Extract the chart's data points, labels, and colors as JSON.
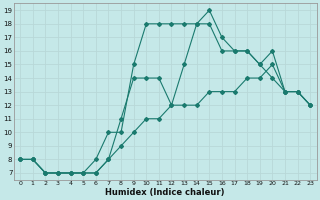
{
  "xlabel": "Humidex (Indice chaleur)",
  "bg_color": "#c5e8e8",
  "line_color": "#1a7a6e",
  "grid_color": "#b8d8d8",
  "xlim": [
    -0.5,
    23.5
  ],
  "ylim": [
    6.5,
    19.5
  ],
  "xticks": [
    0,
    1,
    2,
    3,
    4,
    5,
    6,
    7,
    8,
    9,
    10,
    11,
    12,
    13,
    14,
    15,
    16,
    17,
    18,
    19,
    20,
    21,
    22,
    23
  ],
  "yticks": [
    7,
    8,
    9,
    10,
    11,
    12,
    13,
    14,
    15,
    16,
    17,
    18,
    19
  ],
  "line1_x": [
    0,
    1,
    2,
    3,
    4,
    5,
    6,
    7,
    8,
    9,
    10,
    11,
    12,
    13,
    14,
    15,
    16,
    17,
    18,
    19,
    20,
    21,
    22,
    23
  ],
  "line1_y": [
    8,
    8,
    7,
    7,
    7,
    7,
    7,
    8,
    9,
    10,
    11,
    11,
    12,
    12,
    12,
    13,
    13,
    13,
    14,
    14,
    15,
    13,
    13,
    12
  ],
  "line2_x": [
    0,
    1,
    2,
    3,
    4,
    5,
    6,
    7,
    8,
    9,
    10,
    11,
    12,
    13,
    14,
    15,
    16,
    17,
    18,
    19,
    20,
    21,
    22,
    23
  ],
  "line2_y": [
    8,
    8,
    7,
    7,
    7,
    7,
    8,
    10,
    10,
    15,
    18,
    18,
    18,
    18,
    18,
    18,
    16,
    16,
    16,
    15,
    14,
    13,
    13,
    12
  ],
  "line3_x": [
    0,
    1,
    2,
    3,
    4,
    5,
    6,
    7,
    8,
    9,
    10,
    11,
    12,
    13,
    14,
    15,
    16,
    17,
    18,
    19,
    20,
    21,
    22,
    23
  ],
  "line3_y": [
    8,
    8,
    7,
    7,
    7,
    7,
    7,
    8,
    11,
    14,
    14,
    14,
    12,
    15,
    18,
    19,
    17,
    16,
    16,
    15,
    16,
    13,
    13,
    12
  ]
}
